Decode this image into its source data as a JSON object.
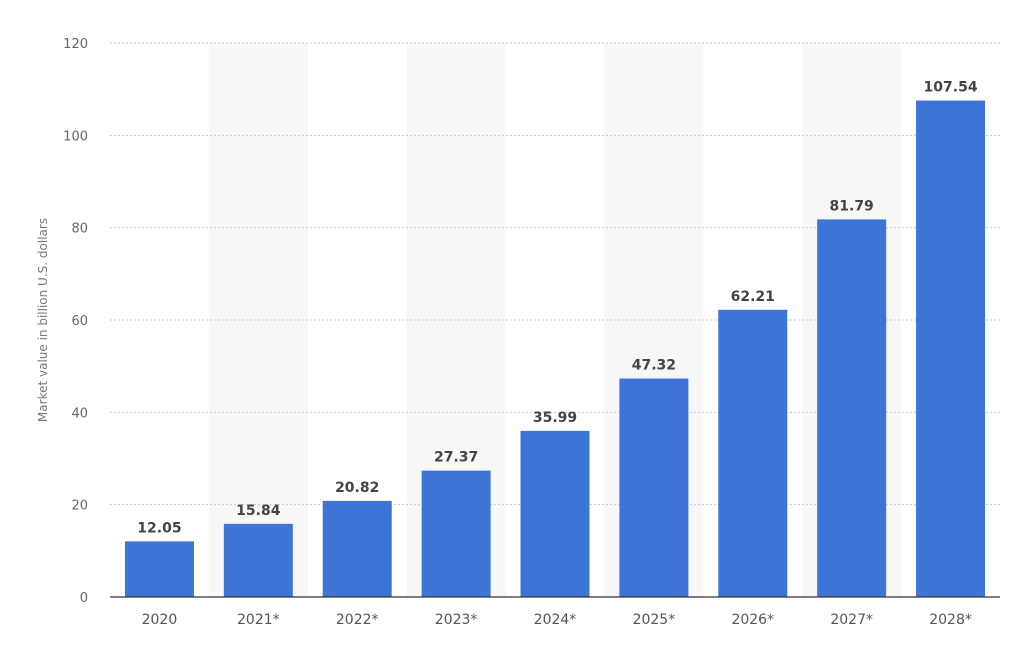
{
  "chart_data": {
    "type": "bar",
    "title": "",
    "xlabel": "",
    "ylabel": "Market value in billion U.S. dollars",
    "categories": [
      "2020",
      "2021*",
      "2022*",
      "2023*",
      "2024*",
      "2025*",
      "2026*",
      "2027*",
      "2028*"
    ],
    "values": [
      12.05,
      15.84,
      20.82,
      27.37,
      35.99,
      47.32,
      62.21,
      81.79,
      107.54
    ],
    "value_labels": [
      "12.05",
      "15.84",
      "20.82",
      "27.37",
      "35.99",
      "47.32",
      "62.21",
      "81.79",
      "107.54"
    ],
    "ylim": [
      0,
      120
    ],
    "yticks": [
      "0",
      "20",
      "40",
      "60",
      "80",
      "100",
      "120"
    ],
    "grid": true,
    "bar_color": "#3d74d6",
    "band_color": "#f7f7f7",
    "grid_color": "#c8c8c8"
  }
}
